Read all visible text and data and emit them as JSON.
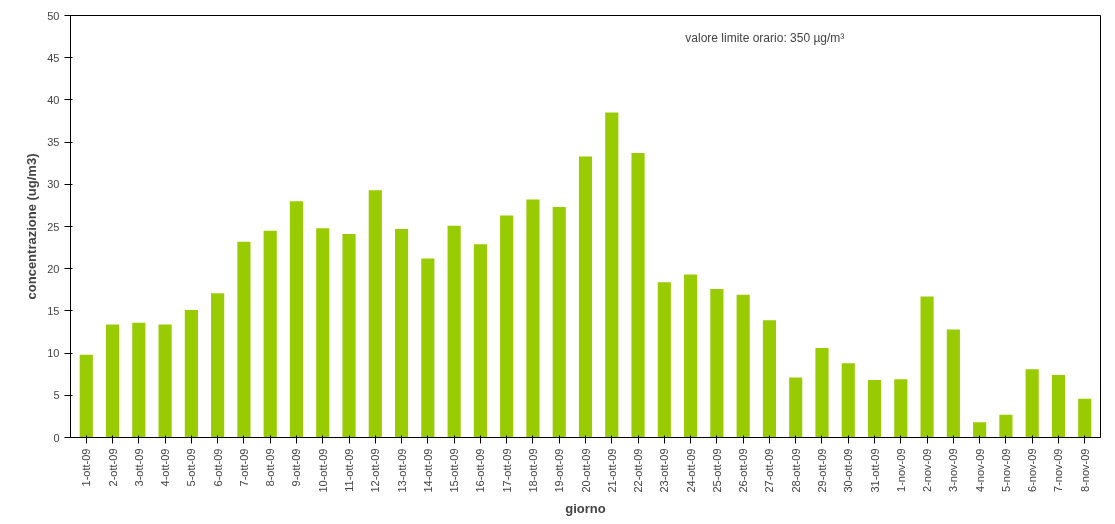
{
  "chart_data": {
    "type": "bar",
    "xlabel": "giorno",
    "ylabel": "concentrazione (ug/m3)",
    "categories": [
      "1-ott-09",
      "2-ott-09",
      "3-ott-09",
      "4-ott-09",
      "5-ott-09",
      "6-ott-09",
      "7-ott-09",
      "8-ott-09",
      "9-ott-09",
      "10-ott-09",
      "11-ott-09",
      "12-ott-09",
      "13-ott-09",
      "14-ott-09",
      "15-ott-09",
      "16-ott-09",
      "17-ott-09",
      "18-ott-09",
      "19-ott-09",
      "20-ott-09",
      "21-ott-09",
      "22-ott-09",
      "23-ott-09",
      "24-ott-09",
      "25-ott-09",
      "26-ott-09",
      "27-ott-09",
      "28-ott-09",
      "29-ott-09",
      "30-ott-09",
      "31-ott-09",
      "1-nov-09",
      "2-nov-09",
      "3-nov-09",
      "4-nov-09",
      "5-nov-09",
      "6-nov-09",
      "7-nov-09",
      "8-nov-09"
    ],
    "values": [
      9.8,
      13.4,
      13.6,
      13.4,
      15.1,
      17.1,
      23.2,
      24.5,
      28.0,
      24.8,
      24.1,
      29.3,
      24.7,
      21.2,
      25.1,
      22.9,
      26.3,
      28.2,
      27.3,
      33.3,
      38.5,
      33.7,
      18.4,
      19.3,
      17.6,
      16.9,
      13.9,
      7.1,
      10.6,
      8.8,
      6.8,
      6.9,
      16.7,
      12.8,
      1.8,
      2.7,
      8.1,
      7.4,
      4.6
    ],
    "color": "#99cc00",
    "ylim": [
      0,
      50
    ],
    "yticks": [
      0,
      5,
      10,
      15,
      20,
      25,
      30,
      35,
      40,
      45,
      50
    ],
    "grid": false,
    "annotations": [
      "valore limite orario: 350 µg/m³"
    ]
  }
}
